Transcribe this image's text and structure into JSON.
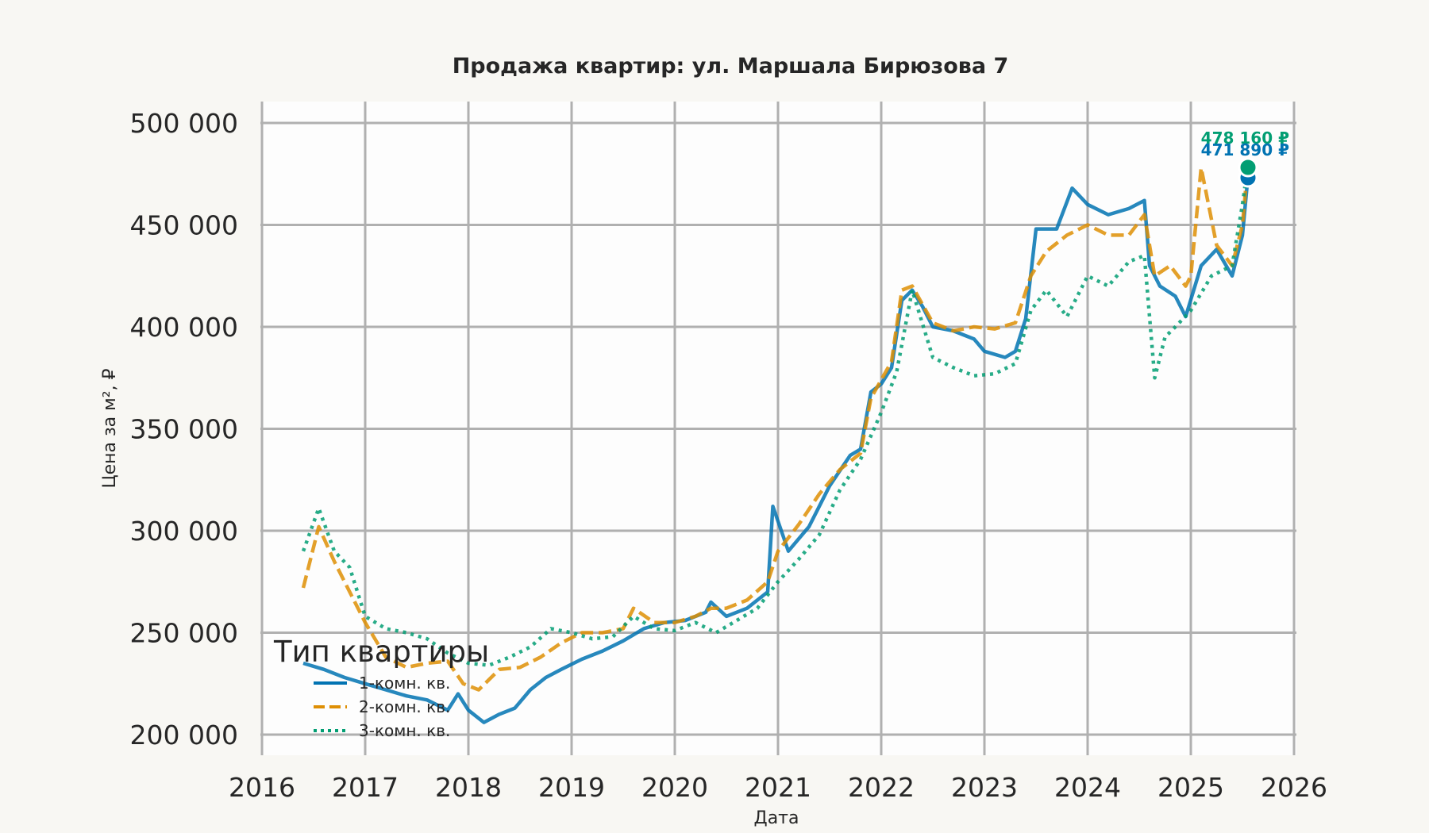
{
  "chart_data": {
    "type": "line",
    "title": "Продажа квартир: ул. Маршала Бирюзова 7",
    "xlabel": "Дата",
    "ylabel": "Цена за м², ₽",
    "xlim": [
      2016,
      2026
    ],
    "ylim": [
      195000,
      505000
    ],
    "x_ticks": [
      "2016",
      "2017",
      "2018",
      "2019",
      "2020",
      "2021",
      "2022",
      "2023",
      "2024",
      "2025",
      "2026"
    ],
    "y_ticks": [
      "200 000",
      "250 000",
      "300 000",
      "350 000",
      "400 000",
      "450 000",
      "500 000"
    ],
    "y_tick_values": [
      200000,
      250000,
      300000,
      350000,
      400000,
      450000,
      500000
    ],
    "grid": true,
    "legend": {
      "title": "Тип квартиры",
      "position": "lower left"
    },
    "series": [
      {
        "name": "1-комн. кв.",
        "color": "#0173b2",
        "style": "solid",
        "x": [
          2016.4,
          2016.6,
          2016.8,
          2017.0,
          2017.2,
          2017.4,
          2017.6,
          2017.8,
          2017.9,
          2018.0,
          2018.15,
          2018.3,
          2018.45,
          2018.6,
          2018.75,
          2018.9,
          2019.1,
          2019.3,
          2019.5,
          2019.7,
          2019.9,
          2020.1,
          2020.3,
          2020.35,
          2020.5,
          2020.7,
          2020.9,
          2020.95,
          2021.1,
          2021.3,
          2021.5,
          2021.7,
          2021.8,
          2021.9,
          2022.0,
          2022.1,
          2022.2,
          2022.3,
          2022.4,
          2022.5,
          2022.7,
          2022.9,
          2023.0,
          2023.2,
          2023.3,
          2023.4,
          2023.5,
          2023.7,
          2023.85,
          2024.0,
          2024.2,
          2024.4,
          2024.55,
          2024.6,
          2024.7,
          2024.85,
          2024.95,
          2025.1,
          2025.25,
          2025.4,
          2025.5,
          2025.55
        ],
        "values": [
          235000,
          232000,
          228000,
          225000,
          222000,
          219000,
          217000,
          212000,
          220000,
          212000,
          206000,
          210000,
          213000,
          222000,
          228000,
          232000,
          237000,
          241000,
          246000,
          252000,
          255000,
          256000,
          260000,
          265000,
          258000,
          262000,
          270000,
          312000,
          290000,
          302000,
          322000,
          337000,
          340000,
          368000,
          372000,
          380000,
          413000,
          418000,
          410000,
          400000,
          398000,
          394000,
          388000,
          385000,
          388000,
          404000,
          448000,
          448000,
          468000,
          460000,
          455000,
          458000,
          462000,
          430000,
          420000,
          415000,
          405000,
          430000,
          438000,
          425000,
          445000,
          471890
        ]
      },
      {
        "name": "2-комн. кв.",
        "color": "#de8f05",
        "style": "dashed",
        "x": [
          2016.4,
          2016.55,
          2016.7,
          2016.85,
          2017.0,
          2017.2,
          2017.4,
          2017.6,
          2017.8,
          2017.95,
          2018.1,
          2018.3,
          2018.5,
          2018.7,
          2018.9,
          2019.1,
          2019.3,
          2019.5,
          2019.6,
          2019.8,
          2020.0,
          2020.2,
          2020.35,
          2020.5,
          2020.7,
          2020.9,
          2021.0,
          2021.2,
          2021.4,
          2021.6,
          2021.8,
          2021.9,
          2022.0,
          2022.1,
          2022.2,
          2022.3,
          2022.5,
          2022.7,
          2022.9,
          2023.1,
          2023.3,
          2023.45,
          2023.6,
          2023.8,
          2024.0,
          2024.2,
          2024.4,
          2024.55,
          2024.65,
          2024.8,
          2024.95,
          2025.0,
          2025.1,
          2025.25,
          2025.4,
          2025.5,
          2025.55
        ],
        "values": [
          272000,
          302000,
          285000,
          270000,
          255000,
          238000,
          233000,
          235000,
          236000,
          225000,
          222000,
          232000,
          233000,
          238000,
          245000,
          250000,
          250000,
          252000,
          262000,
          255000,
          255000,
          258000,
          262000,
          262000,
          266000,
          275000,
          290000,
          303000,
          318000,
          330000,
          338000,
          365000,
          374000,
          383000,
          418000,
          420000,
          402000,
          398000,
          400000,
          399000,
          402000,
          425000,
          437000,
          445000,
          450000,
          445000,
          445000,
          455000,
          425000,
          430000,
          420000,
          425000,
          478000,
          440000,
          430000,
          450000,
          478160
        ]
      },
      {
        "name": "3-комн. кв.",
        "color": "#029e73",
        "style": "dotted",
        "x": [
          2016.4,
          2016.55,
          2016.7,
          2016.85,
          2017.0,
          2017.2,
          2017.4,
          2017.6,
          2017.8,
          2018.0,
          2018.2,
          2018.4,
          2018.6,
          2018.8,
          2019.0,
          2019.2,
          2019.4,
          2019.6,
          2019.8,
          2020.0,
          2020.2,
          2020.4,
          2020.6,
          2020.8,
          2021.0,
          2021.2,
          2021.4,
          2021.6,
          2021.8,
          2022.0,
          2022.15,
          2022.3,
          2022.5,
          2022.7,
          2022.9,
          2023.1,
          2023.3,
          2023.45,
          2023.6,
          2023.8,
          2024.0,
          2024.2,
          2024.4,
          2024.55,
          2024.65,
          2024.75,
          2024.85,
          2025.0,
          2025.2,
          2025.4,
          2025.5,
          2025.55
        ],
        "values": [
          290000,
          311000,
          290000,
          282000,
          258000,
          252000,
          250000,
          247000,
          240000,
          235000,
          234000,
          238000,
          243000,
          252000,
          250000,
          247000,
          248000,
          258000,
          252000,
          251000,
          255000,
          250000,
          256000,
          262000,
          275000,
          286000,
          298000,
          320000,
          335000,
          358000,
          378000,
          418000,
          385000,
          380000,
          376000,
          377000,
          382000,
          408000,
          418000,
          405000,
          425000,
          420000,
          432000,
          435000,
          375000,
          395000,
          400000,
          408000,
          425000,
          430000,
          460000,
          478160
        ]
      }
    ],
    "annotations": [
      {
        "text": "478 160 ₽",
        "color": "#029e73",
        "x": 2025.55,
        "y": 478160
      },
      {
        "text": "471 890 ₽",
        "color": "#0173b2",
        "x": 2025.55,
        "y": 471890
      }
    ]
  }
}
